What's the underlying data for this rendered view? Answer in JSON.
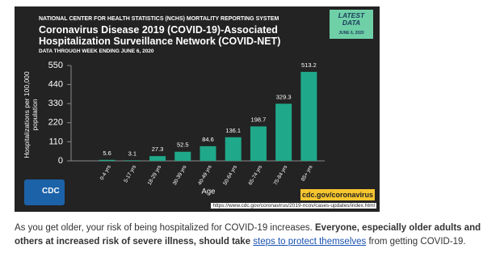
{
  "chart_data": {
    "type": "bar",
    "supertitle": "NATIONAL CENTER FOR HEALTH STATISTICS (NCHS) MORTALITY REPORTING SYSTEM",
    "title": "Coronavirus Disease 2019 (COVID-19)-Associated Hospitalization Surveillance Network (COVID-NET)",
    "subtitle": "DATA THROUGH WEEK ENDING JUNE 6, 2020",
    "badge": "LATEST DATA",
    "badge_date": "JUNE 6, 2020",
    "ylabel": "Hospitalizations per 100,000 population",
    "xlabel": "Age",
    "categories": [
      "0-4 yrs",
      "5-17 yrs",
      "18-29 yrs",
      "30-39 yrs",
      "40-49 yrs",
      "50-64 yrs",
      "65-74 yrs",
      "75-84 yrs",
      "85+ yrs"
    ],
    "values": [
      5.6,
      3.1,
      27.3,
      52.5,
      84.6,
      136.1,
      198.7,
      329.3,
      513.2
    ],
    "color": "#1fa98a",
    "ylim": [
      0,
      550
    ],
    "yticks": [
      0,
      110,
      220,
      330,
      440,
      550
    ],
    "logo": "CDC",
    "site": "cdc.gov/coronavirus",
    "url": "https://www.cdc.gov/coronavirus/2019-ncov/cases-updates/index.html"
  },
  "caption": {
    "text": "As you get older, your risk of being hospitalized for COVID-19 increases. ",
    "bold": "Everyone, especially older adults and others at increased risk of severe illness, should take ",
    "link": "steps to protect themselves",
    "end": " from getting COVID-19."
  }
}
